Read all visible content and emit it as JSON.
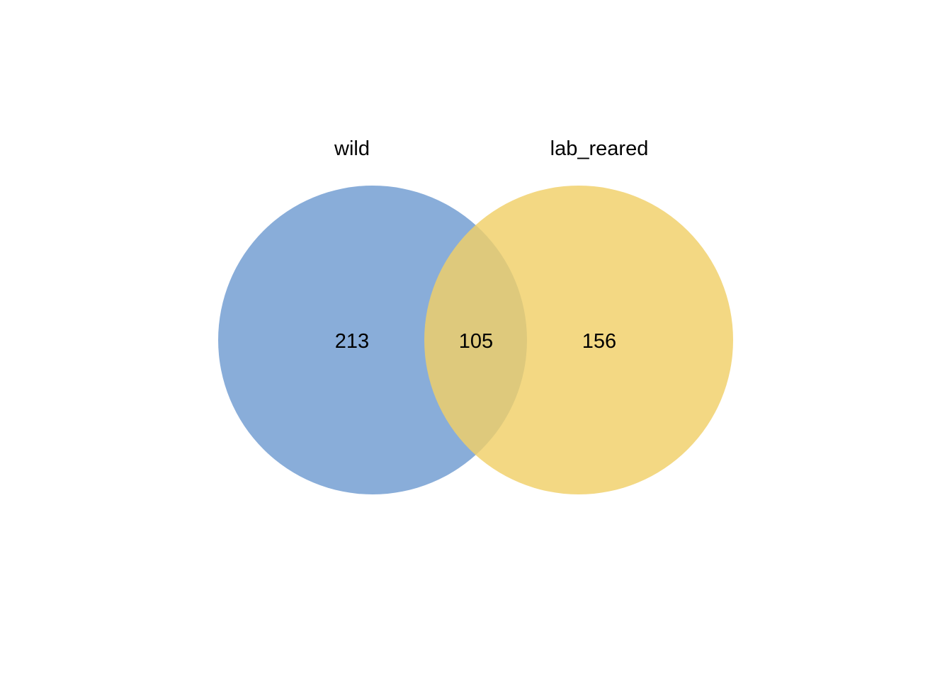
{
  "chart_data": {
    "type": "venn",
    "sets": [
      {
        "name": "wild",
        "color": "#6f9bd1",
        "opacity": 0.82
      },
      {
        "name": "lab_reared",
        "color": "#f0d068",
        "opacity": 0.82
      }
    ],
    "regions": {
      "wild_only": "213",
      "intersection": "105",
      "lab_reared_only": "156"
    }
  }
}
